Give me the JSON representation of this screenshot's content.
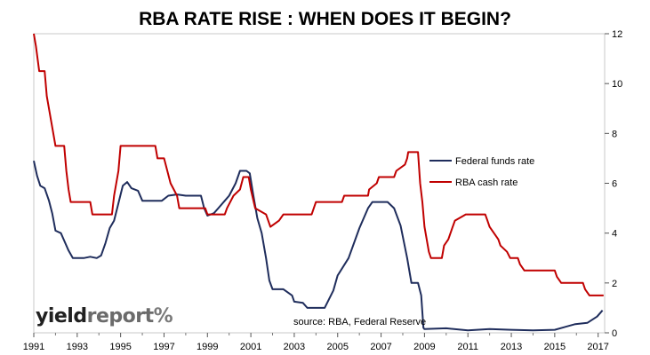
{
  "chart_data": {
    "type": "line",
    "title": "RBA RATE RISE : WHEN DOES IT BEGIN?",
    "xlabel": "",
    "ylabel": "",
    "xlim": [
      1991,
      2017.3
    ],
    "ylim": [
      0,
      12
    ],
    "x_ticks": [
      "1991",
      "1993",
      "1995",
      "1997",
      "1999",
      "2001",
      "2003",
      "2005",
      "2007",
      "2009",
      "2011",
      "2013",
      "2015",
      "2017"
    ],
    "y_ticks": [
      "0",
      "2",
      "4",
      "6",
      "8",
      "10",
      "12"
    ],
    "y_axis_side": "right",
    "grid": false,
    "legend_position": "center-right",
    "colors": {
      "federal_funds": "#1f2d5c",
      "rba_cash": "#c00000"
    },
    "series": [
      {
        "name": "Federal funds rate",
        "points": [
          [
            1991.0,
            6.9
          ],
          [
            1991.15,
            6.3
          ],
          [
            1991.3,
            5.9
          ],
          [
            1991.5,
            5.8
          ],
          [
            1991.7,
            5.3
          ],
          [
            1991.85,
            4.8
          ],
          [
            1992.0,
            4.1
          ],
          [
            1992.25,
            4.0
          ],
          [
            1992.4,
            3.7
          ],
          [
            1992.6,
            3.3
          ],
          [
            1992.8,
            3.0
          ],
          [
            1993.0,
            3.0
          ],
          [
            1993.3,
            3.0
          ],
          [
            1993.6,
            3.05
          ],
          [
            1993.9,
            3.0
          ],
          [
            1994.1,
            3.1
          ],
          [
            1994.3,
            3.6
          ],
          [
            1994.5,
            4.2
          ],
          [
            1994.7,
            4.5
          ],
          [
            1994.9,
            5.2
          ],
          [
            1995.1,
            5.9
          ],
          [
            1995.3,
            6.05
          ],
          [
            1995.5,
            5.8
          ],
          [
            1995.8,
            5.7
          ],
          [
            1996.0,
            5.3
          ],
          [
            1996.5,
            5.3
          ],
          [
            1996.9,
            5.3
          ],
          [
            1997.2,
            5.5
          ],
          [
            1997.6,
            5.55
          ],
          [
            1998.0,
            5.5
          ],
          [
            1998.4,
            5.5
          ],
          [
            1998.7,
            5.5
          ],
          [
            1998.85,
            5.0
          ],
          [
            1999.0,
            4.7
          ],
          [
            1999.3,
            4.8
          ],
          [
            1999.5,
            5.0
          ],
          [
            1999.8,
            5.3
          ],
          [
            2000.0,
            5.5
          ],
          [
            2000.3,
            6.0
          ],
          [
            2000.5,
            6.5
          ],
          [
            2000.8,
            6.5
          ],
          [
            2000.95,
            6.4
          ],
          [
            2001.1,
            5.6
          ],
          [
            2001.3,
            4.6
          ],
          [
            2001.5,
            4.0
          ],
          [
            2001.7,
            3.0
          ],
          [
            2001.85,
            2.1
          ],
          [
            2002.0,
            1.75
          ],
          [
            2002.5,
            1.75
          ],
          [
            2002.9,
            1.5
          ],
          [
            2003.0,
            1.25
          ],
          [
            2003.4,
            1.2
          ],
          [
            2003.6,
            1.0
          ],
          [
            2004.0,
            1.0
          ],
          [
            2004.4,
            1.0
          ],
          [
            2004.8,
            1.7
          ],
          [
            2005.0,
            2.3
          ],
          [
            2005.5,
            3.0
          ],
          [
            2006.0,
            4.2
          ],
          [
            2006.4,
            5.0
          ],
          [
            2006.6,
            5.25
          ],
          [
            2007.3,
            5.25
          ],
          [
            2007.6,
            5.0
          ],
          [
            2007.9,
            4.3
          ],
          [
            2008.2,
            3.0
          ],
          [
            2008.4,
            2.0
          ],
          [
            2008.7,
            2.0
          ],
          [
            2008.85,
            1.5
          ],
          [
            2008.95,
            0.2
          ],
          [
            2009.0,
            0.15
          ],
          [
            2010.0,
            0.18
          ],
          [
            2011.0,
            0.1
          ],
          [
            2012.0,
            0.15
          ],
          [
            2013.0,
            0.12
          ],
          [
            2014.0,
            0.1
          ],
          [
            2015.0,
            0.12
          ],
          [
            2015.95,
            0.35
          ],
          [
            2016.5,
            0.4
          ],
          [
            2016.95,
            0.65
          ],
          [
            2017.0,
            0.7
          ],
          [
            2017.2,
            0.9
          ]
        ]
      },
      {
        "name": "RBA cash rate",
        "points": [
          [
            1991.0,
            12.0
          ],
          [
            1991.1,
            11.5
          ],
          [
            1991.25,
            10.5
          ],
          [
            1991.5,
            10.5
          ],
          [
            1991.6,
            9.5
          ],
          [
            1991.8,
            8.5
          ],
          [
            1992.0,
            7.5
          ],
          [
            1992.4,
            7.5
          ],
          [
            1992.5,
            6.5
          ],
          [
            1992.6,
            5.75
          ],
          [
            1992.7,
            5.25
          ],
          [
            1993.6,
            5.25
          ],
          [
            1993.7,
            4.75
          ],
          [
            1994.6,
            4.75
          ],
          [
            1994.7,
            5.5
          ],
          [
            1994.9,
            6.5
          ],
          [
            1995.0,
            7.5
          ],
          [
            1996.6,
            7.5
          ],
          [
            1996.7,
            7.0
          ],
          [
            1997.0,
            7.0
          ],
          [
            1997.3,
            6.0
          ],
          [
            1997.6,
            5.5
          ],
          [
            1997.7,
            5.0
          ],
          [
            1998.9,
            5.0
          ],
          [
            1999.0,
            4.75
          ],
          [
            1999.8,
            4.75
          ],
          [
            1999.9,
            5.0
          ],
          [
            2000.2,
            5.5
          ],
          [
            2000.5,
            5.75
          ],
          [
            2000.65,
            6.25
          ],
          [
            2000.9,
            6.25
          ],
          [
            2001.0,
            5.75
          ],
          [
            2001.2,
            5.0
          ],
          [
            2001.7,
            4.75
          ],
          [
            2001.9,
            4.25
          ],
          [
            2002.3,
            4.5
          ],
          [
            2002.5,
            4.75
          ],
          [
            2003.8,
            4.75
          ],
          [
            2003.9,
            5.0
          ],
          [
            2004.0,
            5.25
          ],
          [
            2005.2,
            5.25
          ],
          [
            2005.3,
            5.5
          ],
          [
            2006.4,
            5.5
          ],
          [
            2006.45,
            5.75
          ],
          [
            2006.8,
            6.0
          ],
          [
            2006.9,
            6.25
          ],
          [
            2007.6,
            6.25
          ],
          [
            2007.7,
            6.5
          ],
          [
            2008.1,
            6.75
          ],
          [
            2008.2,
            7.0
          ],
          [
            2008.25,
            7.25
          ],
          [
            2008.7,
            7.25
          ],
          [
            2008.8,
            6.0
          ],
          [
            2008.9,
            5.25
          ],
          [
            2009.0,
            4.25
          ],
          [
            2009.2,
            3.25
          ],
          [
            2009.3,
            3.0
          ],
          [
            2009.8,
            3.0
          ],
          [
            2009.9,
            3.5
          ],
          [
            2010.1,
            3.75
          ],
          [
            2010.3,
            4.25
          ],
          [
            2010.4,
            4.5
          ],
          [
            2010.9,
            4.75
          ],
          [
            2011.8,
            4.75
          ],
          [
            2011.9,
            4.5
          ],
          [
            2012.0,
            4.25
          ],
          [
            2012.4,
            3.75
          ],
          [
            2012.5,
            3.5
          ],
          [
            2012.8,
            3.25
          ],
          [
            2012.95,
            3.0
          ],
          [
            2013.3,
            3.0
          ],
          [
            2013.4,
            2.75
          ],
          [
            2013.6,
            2.5
          ],
          [
            2015.0,
            2.5
          ],
          [
            2015.1,
            2.25
          ],
          [
            2015.3,
            2.0
          ],
          [
            2016.3,
            2.0
          ],
          [
            2016.4,
            1.75
          ],
          [
            2016.6,
            1.5
          ],
          [
            2017.25,
            1.5
          ]
        ]
      }
    ],
    "annotations": [
      "source: RBA, Federal Reserve"
    ]
  },
  "logo": {
    "part1": "yield",
    "part2": "report",
    "part3": "%"
  }
}
